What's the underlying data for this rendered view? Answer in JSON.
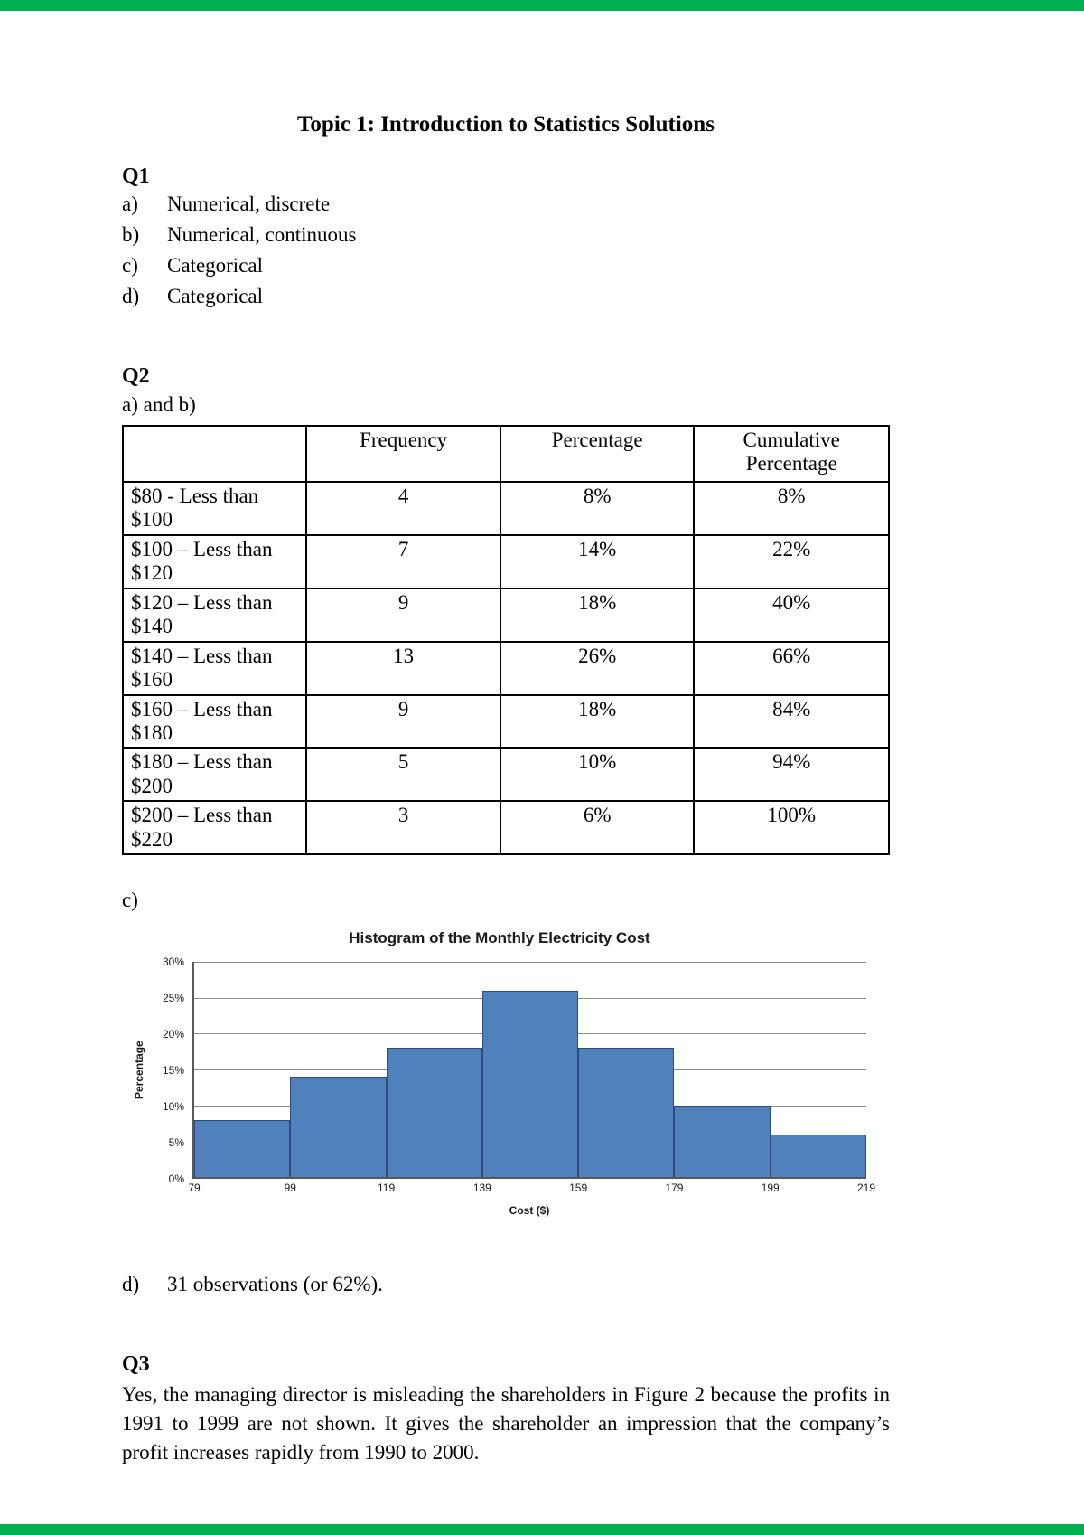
{
  "decor": {
    "band_color": "#00b050"
  },
  "page": {
    "title": "Topic 1: Introduction to Statistics Solutions"
  },
  "q1": {
    "heading": "Q1",
    "items": [
      {
        "label": "a)",
        "text": "Numerical, discrete"
      },
      {
        "label": "b)",
        "text": "Numerical, continuous"
      },
      {
        "label": "c)",
        "text": "Categorical"
      },
      {
        "label": "d)",
        "text": "Categorical"
      }
    ]
  },
  "q2": {
    "heading": "Q2",
    "sub_ab": "a) and b)",
    "table": {
      "headers": [
        "",
        "Frequency",
        "Percentage",
        "Cumulative Percentage"
      ],
      "rows": [
        [
          "$80 - Less than $100",
          "4",
          "8%",
          "8%"
        ],
        [
          "$100 – Less than $120",
          "7",
          "14%",
          "22%"
        ],
        [
          "$120 – Less than $140",
          "9",
          "18%",
          "40%"
        ],
        [
          "$140 – Less than $160",
          "13",
          "26%",
          "66%"
        ],
        [
          "$160 – Less than $180",
          "9",
          "18%",
          "84%"
        ],
        [
          "$180 – Less than $200",
          "5",
          "10%",
          "94%"
        ],
        [
          "$200 – Less than $220",
          "3",
          "6%",
          "100%"
        ]
      ]
    },
    "sub_c": "c)",
    "d_label": "d)",
    "d_text": "31 observations (or 62%)."
  },
  "chart_data": {
    "type": "bar",
    "title": "Histogram of the Monthly Electricity Cost",
    "xlabel": "Cost ($)",
    "ylabel": "Percentage",
    "categories": [
      "79-99",
      "99-119",
      "119-139",
      "139-159",
      "159-179",
      "179-199",
      "199-219"
    ],
    "values": [
      8,
      14,
      18,
      26,
      18,
      10,
      6
    ],
    "x_ticks": [
      "79",
      "99",
      "119",
      "139",
      "159",
      "179",
      "199",
      "219"
    ],
    "y_ticks": [
      "0%",
      "5%",
      "10%",
      "15%",
      "20%",
      "25%",
      "30%"
    ],
    "ylim": [
      0,
      30
    ],
    "grid": "horizontal",
    "legend": "none",
    "bar_color": "#4f81bd",
    "bar_border": "#2d4d76"
  },
  "q3": {
    "heading": "Q3",
    "text": "Yes, the managing director is misleading the shareholders in Figure 2 because the profits in 1991 to 1999 are not shown. It gives the shareholder an impression that the company’s profit increases rapidly from 1990 to 2000."
  }
}
